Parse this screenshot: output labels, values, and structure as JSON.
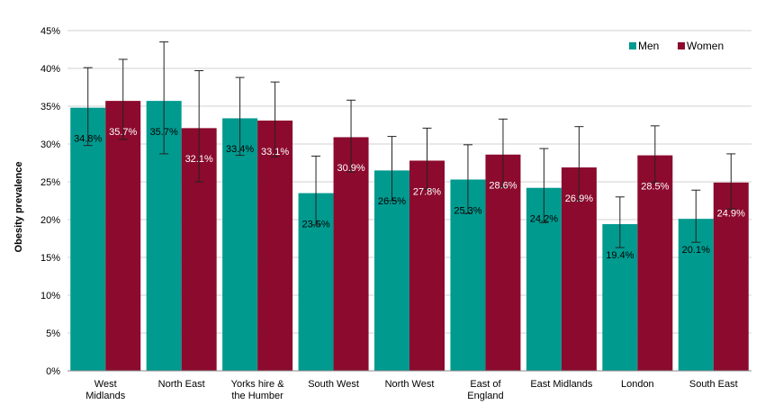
{
  "chart_data": {
    "type": "bar",
    "title": "",
    "xlabel": "",
    "ylabel": "Obesity prevalence",
    "ylim": [
      0,
      45
    ],
    "yticks": [
      "0%",
      "5%",
      "10%",
      "15%",
      "20%",
      "25%",
      "30%",
      "35%",
      "40%",
      "45%"
    ],
    "grid": true,
    "legend": "top-right",
    "categories": [
      [
        "West",
        "Midlands"
      ],
      [
        "North East"
      ],
      [
        "Yorks hire &",
        "the Humber"
      ],
      [
        "South West"
      ],
      [
        "North West"
      ],
      [
        "East of",
        "England"
      ],
      [
        "East Midlands"
      ],
      [
        "London"
      ],
      [
        "South East"
      ]
    ],
    "series": [
      {
        "name": "Men",
        "color": "#009a8f",
        "values": [
          34.8,
          35.7,
          33.4,
          23.5,
          26.5,
          25.3,
          24.2,
          19.4,
          20.1
        ],
        "labels": [
          "34.8%",
          "35.7%",
          "33.4%",
          "23.5%",
          "26.5%",
          "25.3%",
          "24.2%",
          "19.4%",
          "20.1%"
        ],
        "error_low": [
          29.8,
          28.7,
          28.5,
          19.3,
          22.5,
          20.8,
          19.6,
          16.3,
          17.0
        ],
        "error_high": [
          40.1,
          43.5,
          38.8,
          28.4,
          31.0,
          29.9,
          29.4,
          23.0,
          23.9
        ],
        "label_color": "#000000"
      },
      {
        "name": "Women",
        "color": "#8c0a2e",
        "values": [
          35.7,
          32.1,
          33.1,
          30.9,
          27.8,
          28.6,
          26.9,
          28.5,
          24.9
        ],
        "labels": [
          "35.7%",
          "32.1%",
          "33.1%",
          "30.9%",
          "27.8%",
          "28.6%",
          "26.9%",
          "28.5%",
          "24.9%"
        ],
        "error_low": [
          30.6,
          25.0,
          28.3,
          26.3,
          24.0,
          24.3,
          22.5,
          24.9,
          21.4
        ],
        "error_high": [
          41.2,
          39.7,
          38.2,
          35.8,
          32.1,
          33.3,
          32.3,
          32.4,
          28.7
        ],
        "label_color": "#ffffff"
      }
    ]
  }
}
